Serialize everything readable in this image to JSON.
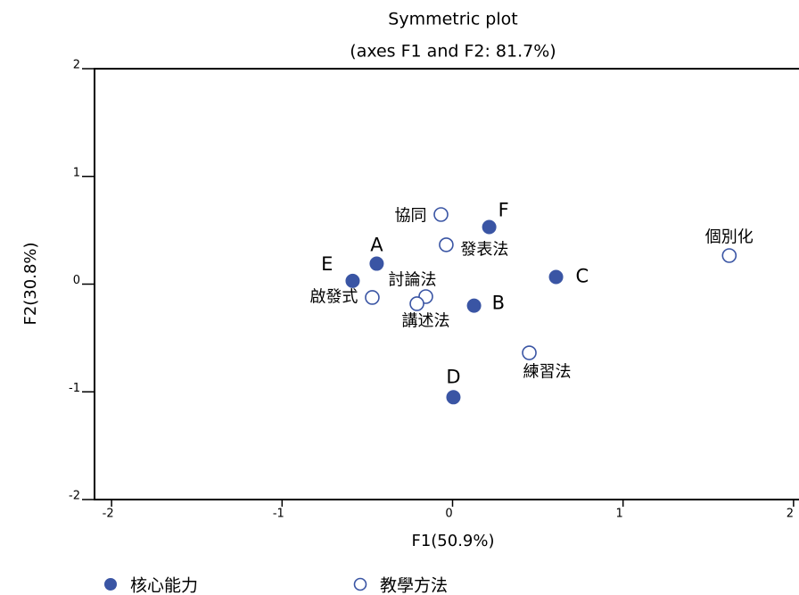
{
  "chart_data": {
    "type": "scatter",
    "title": "Symmetric plot",
    "subtitle": "(axes F1 and F2: 81.7%)",
    "x_label": "F1(50.9%)",
    "y_label": "F2(30.8%)",
    "xlim": [
      -2.1,
      2.1
    ],
    "ylim": [
      -2,
      2
    ],
    "xticks": [
      -2,
      -1,
      0,
      1,
      2
    ],
    "yticks": [
      -2,
      -1,
      0,
      1,
      2
    ],
    "grid": false,
    "legend": "bottom",
    "series": [
      {
        "name": "核心能力",
        "color": "#3a55a4",
        "marker": "filled",
        "labels": [
          "A",
          "E",
          "F",
          "C",
          "B",
          "D"
        ],
        "x": [
          -0.445,
          -0.586,
          0.215,
          0.607,
          0.126,
          0.005
        ],
        "values": [
          0.19,
          0.03,
          0.53,
          0.066,
          -0.2,
          -1.05
        ]
      },
      {
        "name": "教學方法",
        "color": "#3a55a4",
        "marker": "open",
        "labels": [
          "協同",
          "發表法",
          "個別化",
          "討論法",
          "啟發式",
          "講述法",
          "練習法"
        ],
        "x": [
          -0.068,
          -0.037,
          1.623,
          -0.157,
          -0.471,
          -0.209,
          0.45
        ],
        "values": [
          0.646,
          0.365,
          0.265,
          -0.116,
          -0.124,
          -0.182,
          -0.638
        ]
      }
    ]
  }
}
